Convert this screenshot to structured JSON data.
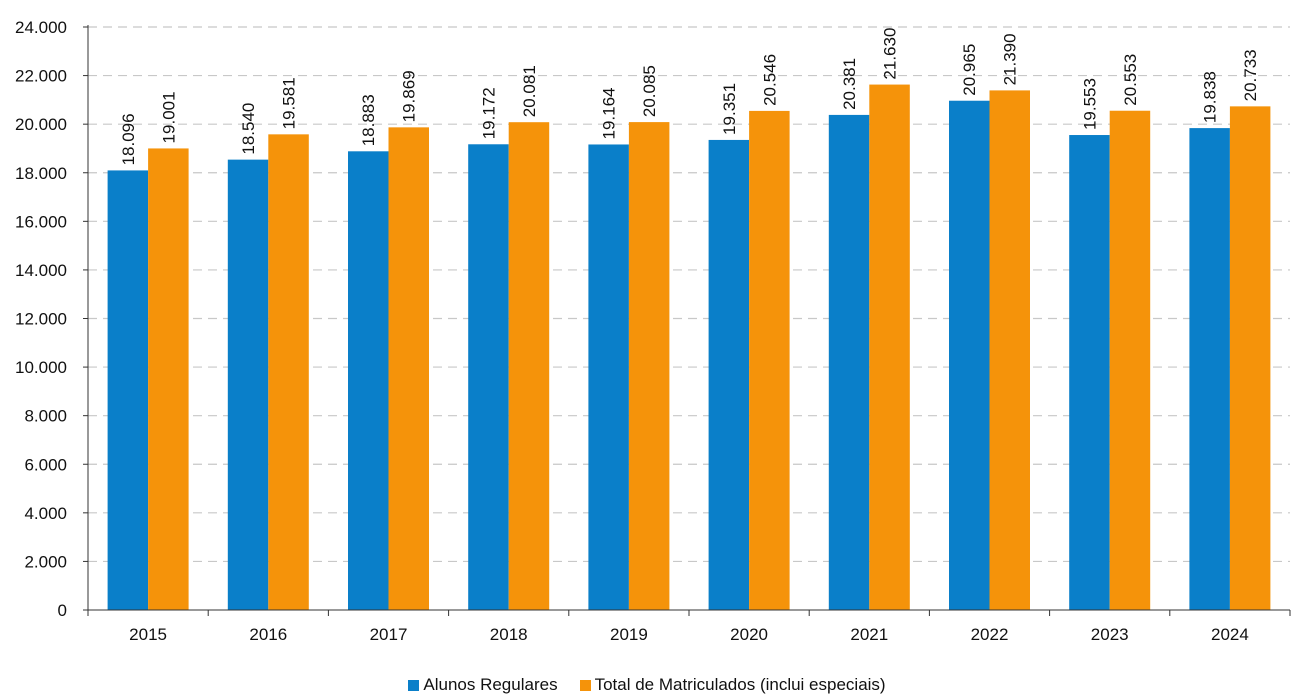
{
  "chart_data": {
    "type": "bar",
    "categories": [
      "2015",
      "2016",
      "2017",
      "2018",
      "2019",
      "2020",
      "2021",
      "2022",
      "2023",
      "2024"
    ],
    "series": [
      {
        "name": "Alunos Regulares",
        "color": "#0a7fc9",
        "values": [
          18096,
          18540,
          18883,
          19172,
          19164,
          19351,
          20381,
          20965,
          19553,
          19838
        ],
        "labels": [
          "18.096",
          "18.540",
          "18.883",
          "19.172",
          "19.164",
          "19.351",
          "20.381",
          "20.965",
          "19.553",
          "19.838"
        ]
      },
      {
        "name": "Total de Matriculados (inclui especiais)",
        "color": "#f5930a",
        "values": [
          19001,
          19581,
          19869,
          20081,
          20085,
          20546,
          21630,
          21390,
          20553,
          20733
        ],
        "labels": [
          "19.001",
          "19.581",
          "19.869",
          "20.081",
          "20.085",
          "20.546",
          "21.630",
          "21.390",
          "20.553",
          "20.733"
        ]
      }
    ],
    "ylim": [
      0,
      24000
    ],
    "yticks": [
      0,
      2000,
      4000,
      6000,
      8000,
      10000,
      12000,
      14000,
      16000,
      18000,
      20000,
      22000,
      24000
    ],
    "ytick_labels": [
      "0",
      "2.000",
      "4.000",
      "6.000",
      "8.000",
      "10.000",
      "12.000",
      "14.000",
      "16.000",
      "18.000",
      "20.000",
      "22.000",
      "24.000"
    ],
    "grid": "horizontal dashed",
    "legend_position": "bottom",
    "title": "",
    "xlabel": "",
    "ylabel": ""
  }
}
